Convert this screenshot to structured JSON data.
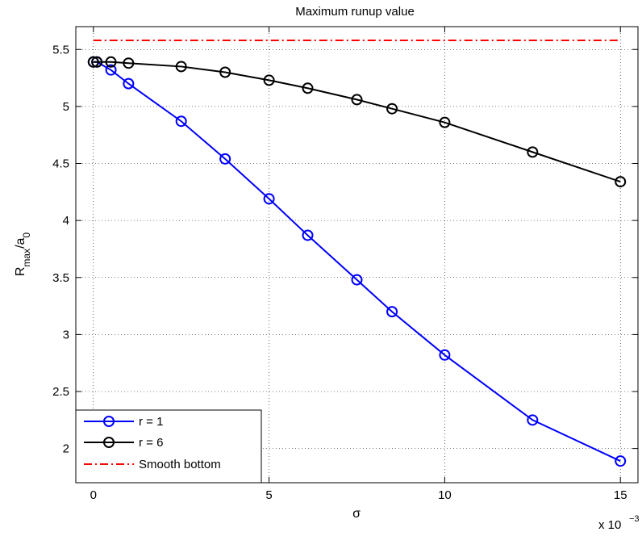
{
  "chart_data": {
    "type": "line",
    "title": "Maximum runup value",
    "xlabel": "σ",
    "ylabel_main": "R",
    "ylabel_sub1": "max",
    "ylabel_mid": "/a",
    "ylabel_sub2": "0",
    "x_multiplier_text": "x 10",
    "x_multiplier_exp": "−3",
    "xlim": [
      -0.5,
      15.5
    ],
    "ylim": [
      1.7,
      5.7
    ],
    "x_ticks": [
      0,
      5,
      10,
      15
    ],
    "y_ticks": [
      2,
      2.5,
      3,
      3.5,
      4,
      4.5,
      5,
      5.5
    ],
    "x_tick_labels": [
      "0",
      "5",
      "10",
      "15"
    ],
    "y_tick_labels": [
      "2",
      "2.5",
      "3",
      "3.5",
      "4",
      "4.5",
      "5",
      "5.5"
    ],
    "grid": true,
    "legend_position": "bottom-left",
    "series": [
      {
        "name": "r = 1",
        "color": "#0000ff",
        "style": "solid-circle",
        "x": [
          0,
          0.1,
          0.5,
          1,
          2.5,
          3.75,
          5,
          6.1,
          7.5,
          8.5,
          10,
          12.5,
          15
        ],
        "y": [
          5.39,
          5.39,
          5.32,
          5.2,
          4.87,
          4.54,
          4.19,
          3.87,
          3.48,
          3.2,
          2.82,
          2.25,
          1.89
        ]
      },
      {
        "name": "r = 6",
        "color": "#000000",
        "style": "solid-circle",
        "x": [
          0,
          0.1,
          0.5,
          1,
          2.5,
          3.75,
          5,
          6.1,
          7.5,
          8.5,
          10,
          12.5,
          15
        ],
        "y": [
          5.39,
          5.39,
          5.39,
          5.38,
          5.35,
          5.3,
          5.23,
          5.16,
          5.06,
          4.98,
          4.86,
          4.6,
          4.34
        ]
      },
      {
        "name": "Smooth bottom",
        "color": "#ff0000",
        "style": "dashdot",
        "x": [
          0,
          15
        ],
        "y": [
          5.58,
          5.58
        ]
      }
    ]
  }
}
